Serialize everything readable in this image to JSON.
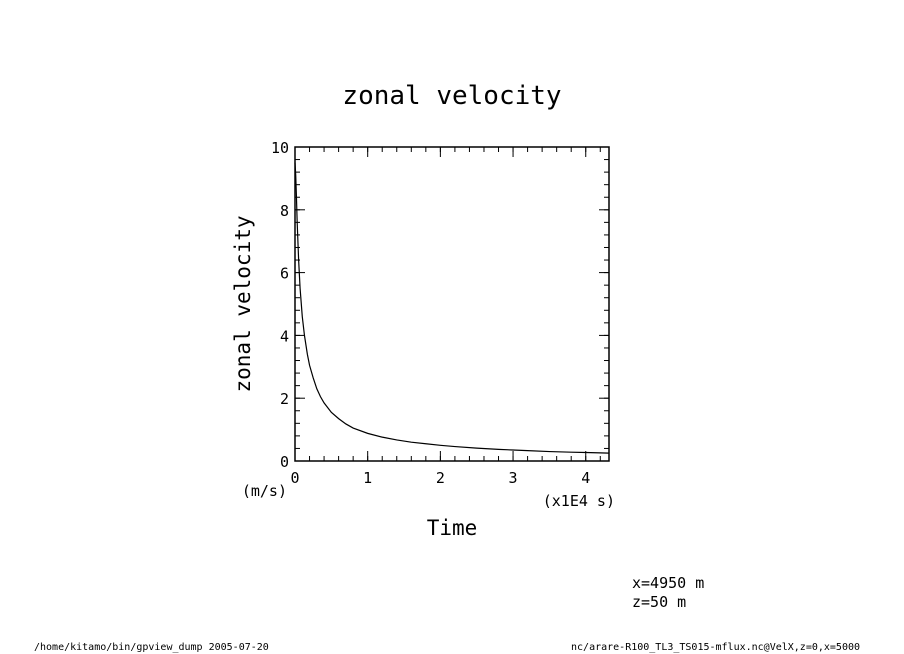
{
  "footer": {
    "left": "/home/kitamo/bin/gpview_dump  2005-07-20",
    "right": "nc/arare-R100_TL3_TS015-mflux.nc@VelX,z=0,x=5000"
  },
  "info": {
    "line1": "x=4950  m",
    "line2": "z=50  m"
  },
  "chart_data": {
    "type": "line",
    "title": "zonal  velocity",
    "xlabel": "Time",
    "ylabel": "zonal  velocity",
    "x_unit": "(x1E4  s)",
    "y_unit": "(m/s)",
    "xlim": [
      0,
      4.32
    ],
    "ylim": [
      0,
      10
    ],
    "x_major_ticks": [
      0,
      1,
      2,
      3,
      4
    ],
    "y_major_ticks": [
      0,
      2,
      4,
      6,
      8,
      10
    ],
    "x_tick_labels": [
      "0",
      "1",
      "2",
      "3",
      "4"
    ],
    "y_tick_labels": [
      "0",
      "2",
      "4",
      "6",
      "8",
      "10"
    ],
    "series": [
      {
        "values_x": [
          0.0,
          0.01,
          0.02,
          0.03,
          0.05,
          0.07,
          0.1,
          0.13,
          0.17,
          0.2,
          0.25,
          0.3,
          0.35,
          0.4,
          0.5,
          0.6,
          0.7,
          0.8,
          1.0,
          1.2,
          1.4,
          1.6,
          1.8,
          2.0,
          2.2,
          2.5,
          2.8,
          3.0,
          3.2,
          3.5,
          3.8,
          4.0,
          4.2,
          4.32
        ],
        "values_y": [
          9.5,
          9.1,
          8.4,
          7.6,
          6.4,
          5.5,
          4.6,
          4.0,
          3.4,
          3.05,
          2.65,
          2.3,
          2.05,
          1.85,
          1.55,
          1.35,
          1.18,
          1.05,
          0.88,
          0.76,
          0.67,
          0.6,
          0.55,
          0.5,
          0.46,
          0.41,
          0.37,
          0.35,
          0.33,
          0.3,
          0.28,
          0.27,
          0.26,
          0.25
        ]
      }
    ]
  }
}
